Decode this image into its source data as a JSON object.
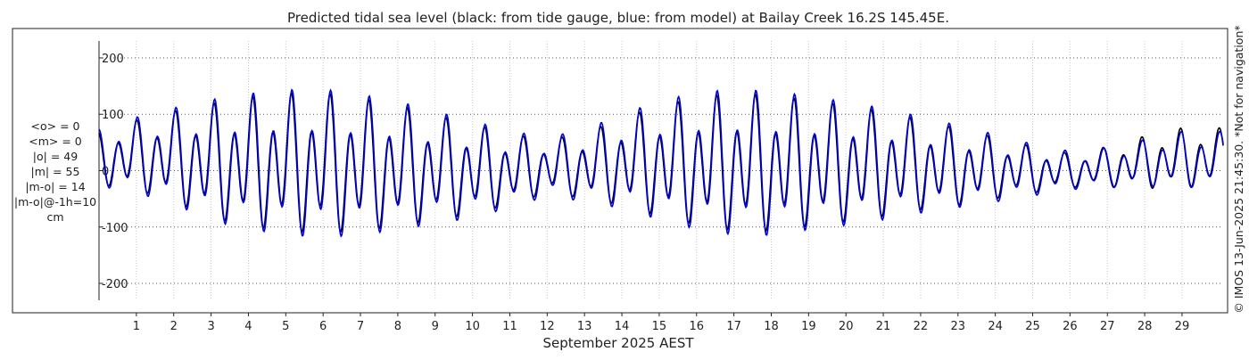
{
  "chart_data": {
    "type": "line",
    "title": "Predicted tidal sea level (black: from tide gauge, blue: from model) at Bailay Creek 16.2S 145.45E.",
    "xlabel": "September 2025 AEST",
    "ylabel": "",
    "ylim": [
      -230,
      230
    ],
    "xlim": [
      0,
      30.1
    ],
    "grid": true,
    "x_ticks": [
      "1",
      "2",
      "3",
      "4",
      "5",
      "6",
      "7",
      "8",
      "9",
      "10",
      "11",
      "12",
      "13",
      "14",
      "15",
      "16",
      "17",
      "18",
      "19",
      "20",
      "21",
      "22",
      "23",
      "24",
      "25",
      "26",
      "27",
      "28",
      "29"
    ],
    "y_ticks": [
      -200,
      -100,
      0,
      100,
      200
    ],
    "y_tick_labels": [
      "-200",
      "-100",
      "0",
      "100",
      "200"
    ],
    "side_stats": [
      "<o> = 0",
      "<m> = 0",
      "|o| = 49",
      "|m| = 55",
      "|m-o| = 14",
      "|m-o|@-1h=10",
      "cm"
    ],
    "copyright": "© IMOS 13-Jun-2025 21:45:30. *Not for navigation*",
    "series": [
      {
        "color": "#000000",
        "daily_range": [
          [
            -25,
            65
          ],
          [
            -35,
            85
          ],
          [
            -55,
            100
          ],
          [
            -85,
            112
          ],
          [
            -100,
            122
          ],
          [
            -108,
            128
          ],
          [
            -112,
            130
          ],
          [
            -108,
            120
          ],
          [
            -100,
            108
          ],
          [
            -88,
            92
          ],
          [
            -78,
            78
          ],
          [
            -60,
            60
          ],
          [
            -40,
            52
          ],
          [
            -50,
            62
          ],
          [
            -62,
            88
          ],
          [
            -82,
            108
          ],
          [
            -98,
            122
          ],
          [
            -108,
            128
          ],
          [
            -108,
            125
          ],
          [
            -100,
            118
          ],
          [
            -92,
            108
          ],
          [
            -82,
            98
          ],
          [
            -70,
            85
          ],
          [
            -62,
            70
          ],
          [
            -50,
            55
          ],
          [
            -40,
            40
          ],
          [
            -30,
            28
          ],
          [
            -30,
            40
          ],
          [
            -32,
            58
          ],
          [
            -30,
            72
          ]
        ]
      },
      {
        "color": "#0000dd",
        "daily_range": [
          [
            -28,
            70
          ],
          [
            -40,
            90
          ],
          [
            -60,
            105
          ],
          [
            -90,
            118
          ],
          [
            -105,
            128
          ],
          [
            -115,
            134
          ],
          [
            -120,
            135
          ],
          [
            -115,
            126
          ],
          [
            -106,
            115
          ],
          [
            -95,
            98
          ],
          [
            -85,
            82
          ],
          [
            -66,
            65
          ],
          [
            -46,
            56
          ],
          [
            -55,
            68
          ],
          [
            -68,
            95
          ],
          [
            -88,
            115
          ],
          [
            -105,
            130
          ],
          [
            -115,
            135
          ],
          [
            -116,
            132
          ],
          [
            -106,
            124
          ],
          [
            -98,
            114
          ],
          [
            -88,
            104
          ],
          [
            -76,
            90
          ],
          [
            -66,
            75
          ],
          [
            -56,
            60
          ],
          [
            -45,
            44
          ],
          [
            -34,
            32
          ],
          [
            -30,
            38
          ],
          [
            -28,
            52
          ],
          [
            -30,
            66
          ]
        ]
      }
    ]
  }
}
